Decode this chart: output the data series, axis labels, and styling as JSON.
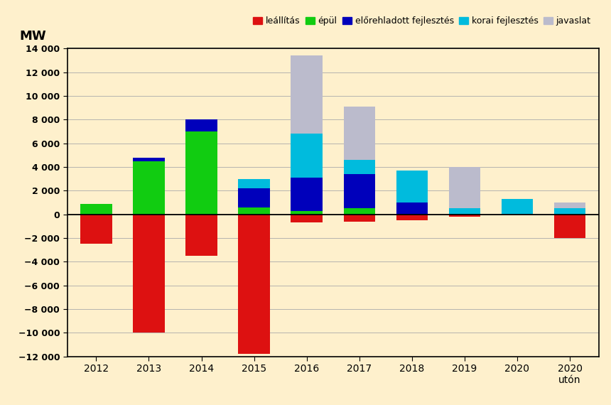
{
  "categories": [
    "2012",
    "2013",
    "2014",
    "2015",
    "2016",
    "2017",
    "2018",
    "2019",
    "2020",
    "2020\nutón"
  ],
  "leallitas": [
    -2500,
    -10000,
    -3500,
    -11800,
    -700,
    -600,
    -500,
    -200,
    0,
    -2000
  ],
  "epul": [
    900,
    4500,
    7000,
    600,
    300,
    500,
    0,
    0,
    0,
    0
  ],
  "elorehladott": [
    0,
    300,
    1000,
    1600,
    2800,
    2900,
    1000,
    0,
    0,
    0
  ],
  "korai": [
    0,
    0,
    0,
    800,
    3700,
    1200,
    2700,
    500,
    1300,
    500
  ],
  "javaslat": [
    0,
    0,
    0,
    0,
    6600,
    4500,
    0,
    3500,
    0,
    500
  ],
  "colors": {
    "leallitas": "#dd1111",
    "epul": "#11cc11",
    "elorehladott": "#0000bb",
    "korai": "#00bbdd",
    "javaslat": "#bbbbcc"
  },
  "legend_labels": [
    "leállítás",
    "épül",
    "előrehladott fejlesztés",
    "korai fejlesztés",
    "javaslat"
  ],
  "ylabel": "MW",
  "ylim": [
    -12000,
    14000
  ],
  "yticks": [
    -12000,
    -10000,
    -8000,
    -6000,
    -4000,
    -2000,
    0,
    2000,
    4000,
    6000,
    8000,
    10000,
    12000,
    14000
  ],
  "background_color": "#fef0cc",
  "grid_color": "#aaaaaa",
  "figsize": [
    8.6,
    5.7
  ],
  "dpi": 100
}
